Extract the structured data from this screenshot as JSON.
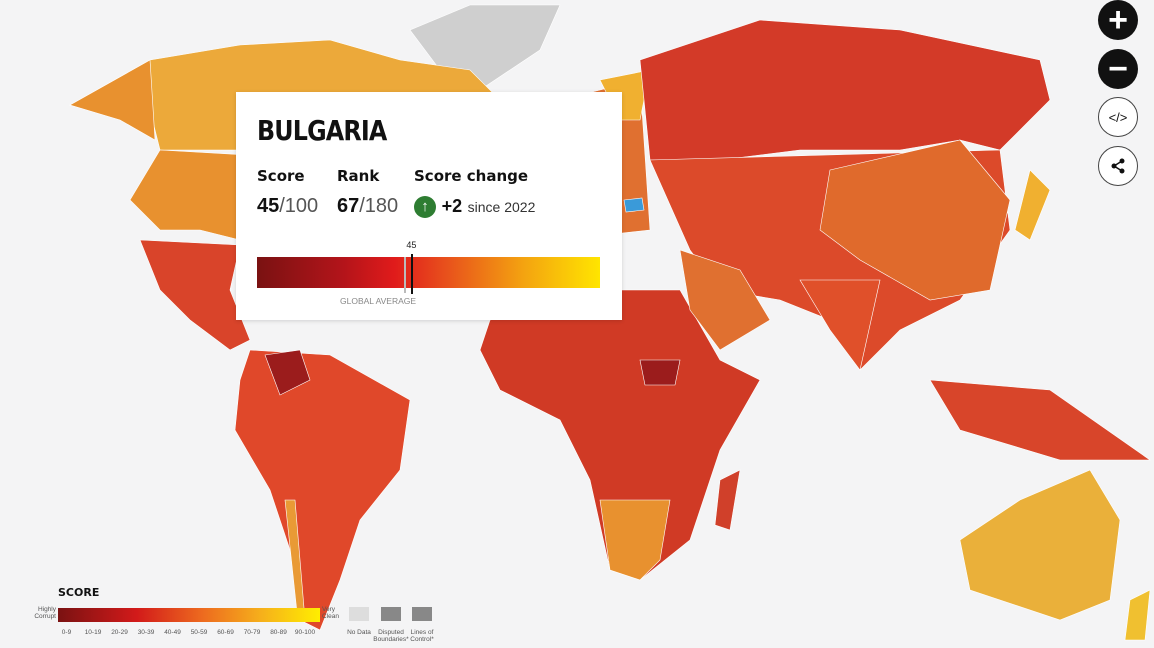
{
  "popup": {
    "country": "BULGARIA",
    "score_label": "Score",
    "score": "45",
    "score_max": "/100",
    "rank_label": "Rank",
    "rank": "67",
    "rank_max": "/180",
    "change_label": "Score change",
    "change_icon": "arrow-up-icon",
    "change": "+2",
    "since": "since 2022",
    "marker_value": "45",
    "global_average_label": "GLOBAL AVERAGE",
    "score_fraction": 0.45,
    "global_average_fraction": 0.43
  },
  "controls": {
    "zoom_in": "+",
    "zoom_out": "−",
    "embed": "</>",
    "share": "share-icon"
  },
  "legend": {
    "title": "SCORE",
    "low": "Highly Corrupt",
    "high": "Very Clean",
    "ranges": [
      "0-9",
      "10-19",
      "20-29",
      "30-39",
      "40-49",
      "50-59",
      "60-69",
      "70-79",
      "80-89",
      "90-100"
    ],
    "no_data": "No Data",
    "disputed": "Disputed Boundaries*",
    "lines": "Lines of Control*"
  },
  "colors": {
    "very_low": "#9b1c1c",
    "low": "#d33a28",
    "mid": "#e0602b",
    "high": "#e99a35",
    "higher": "#eeb03a",
    "no_data": "#cfcfcf",
    "selected": "#3a9ad9"
  }
}
